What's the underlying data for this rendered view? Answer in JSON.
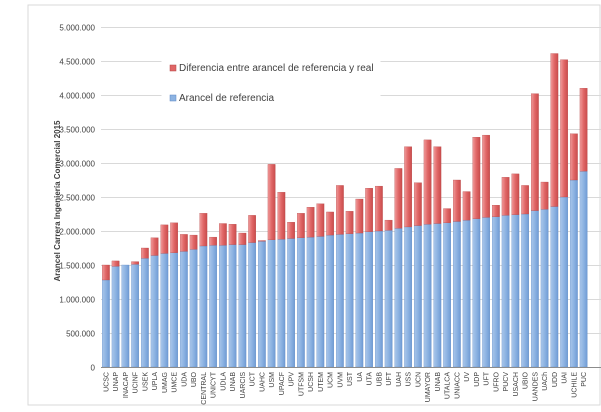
{
  "chart_data": {
    "type": "bar",
    "stacked": true,
    "ylabel": "Arancel Carrera Ingeniería Comercial 2015",
    "ylim": [
      0,
      5000000
    ],
    "yticks": [
      0,
      500000,
      1000000,
      1500000,
      2000000,
      2500000,
      3000000,
      3500000,
      4000000,
      4500000,
      5000000
    ],
    "ytick_labels": [
      "0",
      "500.000",
      "1.000.000",
      "1.500.000",
      "2.000.000",
      "2.500.000",
      "3.000.000",
      "3.500.000",
      "4.000.000",
      "4.500.000",
      "5.000.000"
    ],
    "grid": true,
    "legend": "inside-top-left",
    "categories": [
      "UCSC",
      "UNAP",
      "INACAP",
      "UCINF",
      "USEK",
      "UPLA",
      "UMAG",
      "UMCE",
      "UDA",
      "UBO",
      "CENTRAL",
      "UNICYT",
      "UDLA",
      "UNAB",
      "UARCIS",
      "UCT",
      "UAHC",
      "USM",
      "UPACF",
      "UPV",
      "UTFSM",
      "UCSH",
      "UTEM",
      "UCM",
      "UVM",
      "UST",
      "UA",
      "UTA",
      "UBB",
      "UFT",
      "UAH",
      "USS",
      "UCN",
      "UMAYOR",
      "UNAB",
      "UTALCA",
      "UNIACC",
      "UV",
      "UDP",
      "UFT",
      "UFRO",
      "PUCV",
      "USACH",
      "UBIO",
      "UANDES",
      "UACh",
      "UDD",
      "UAI",
      "UCHILE",
      "PUC"
    ],
    "series": [
      {
        "name": "Arancel de referencia",
        "color": "#8db3e2",
        "values": [
          1280000,
          1480000,
          1500000,
          1510000,
          1600000,
          1640000,
          1670000,
          1680000,
          1700000,
          1730000,
          1780000,
          1790000,
          1790000,
          1800000,
          1800000,
          1830000,
          1850000,
          1870000,
          1880000,
          1890000,
          1900000,
          1910000,
          1920000,
          1940000,
          1950000,
          1960000,
          1970000,
          1990000,
          2000000,
          2010000,
          2040000,
          2060000,
          2080000,
          2100000,
          2110000,
          2120000,
          2140000,
          2160000,
          2180000,
          2200000,
          2210000,
          2230000,
          2240000,
          2250000,
          2300000,
          2320000,
          2360000,
          2500000,
          2750000,
          2880000
        ]
      },
      {
        "name": "Diferencia entre arancel de referencia y real",
        "color": "#e06666",
        "values": [
          220000,
          80000,
          0,
          40000,
          150000,
          260000,
          420000,
          440000,
          250000,
          210000,
          480000,
          120000,
          320000,
          300000,
          170000,
          400000,
          10000,
          1110000,
          690000,
          240000,
          360000,
          440000,
          480000,
          340000,
          720000,
          330000,
          500000,
          640000,
          660000,
          150000,
          880000,
          1180000,
          630000,
          1240000,
          1130000,
          210000,
          610000,
          420000,
          1200000,
          1210000,
          170000,
          560000,
          600000,
          420000,
          1720000,
          400000,
          2250000,
          2020000,
          680000,
          1220000
        ]
      }
    ]
  }
}
